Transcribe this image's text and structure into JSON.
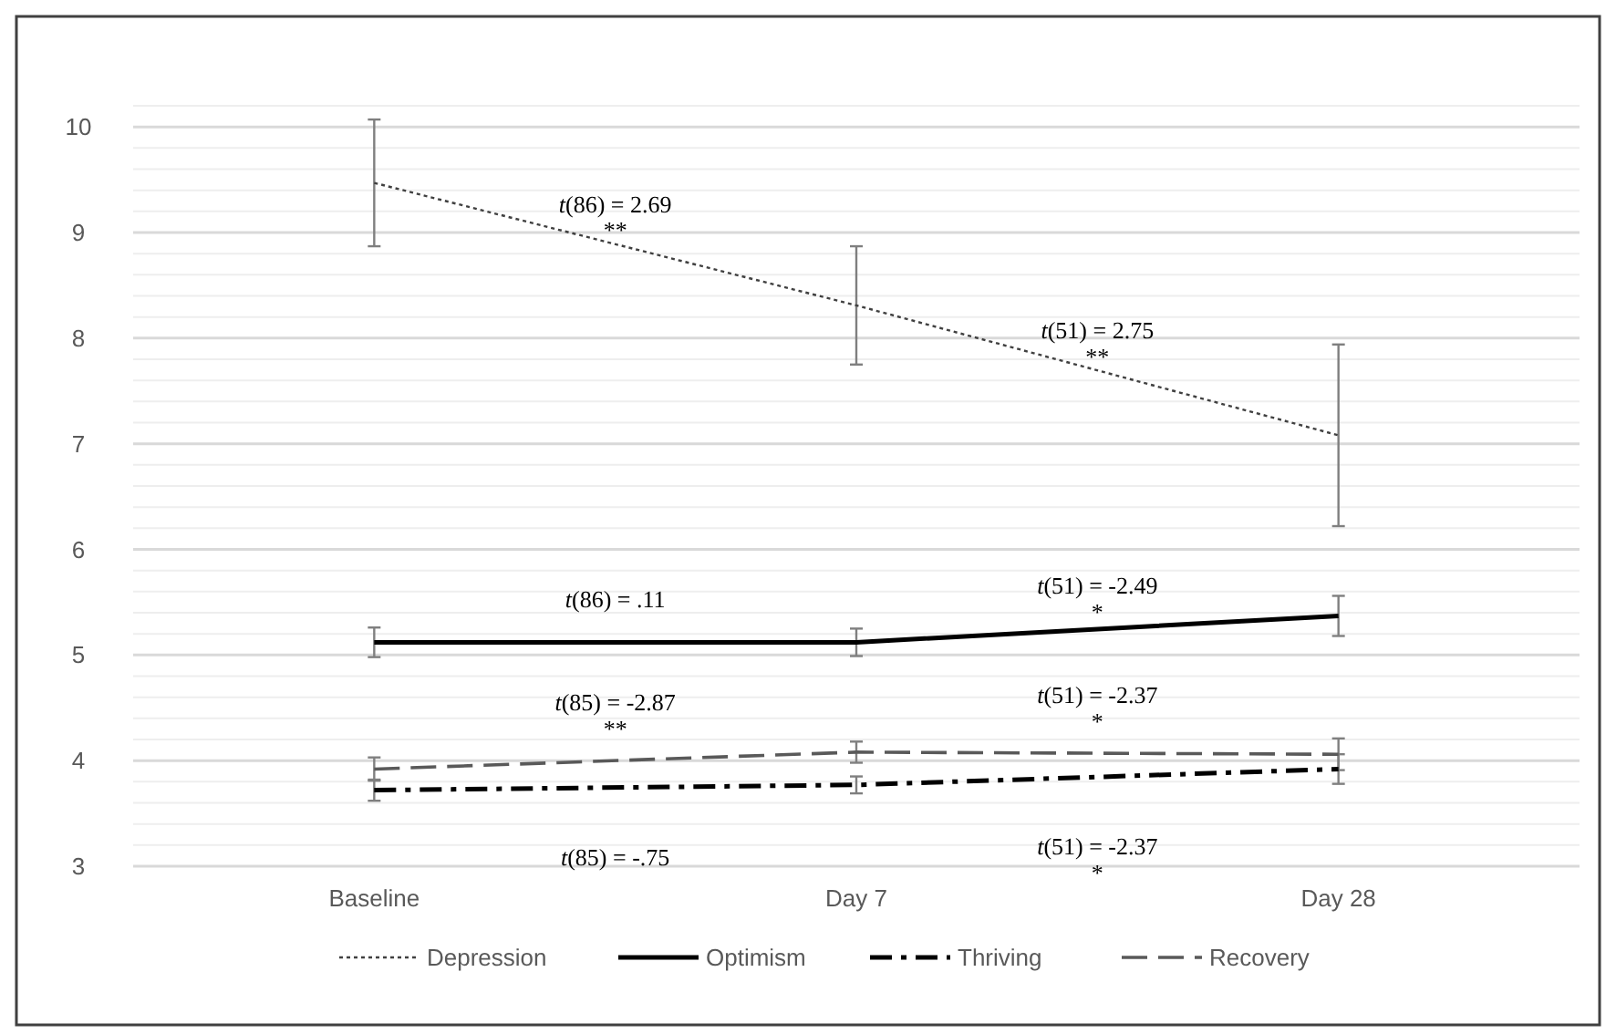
{
  "chart_data": {
    "type": "line",
    "categories": [
      "Baseline",
      "Day 7",
      "Day 28"
    ],
    "series": [
      {
        "name": "Depression",
        "color": "#404040",
        "line_style": "dotted",
        "values": [
          9.47,
          8.31,
          7.08
        ],
        "errors": [
          0.6,
          0.56,
          0.86
        ]
      },
      {
        "name": "Optimism",
        "color": "#000000",
        "line_style": "solid",
        "values": [
          5.12,
          5.12,
          5.37
        ],
        "errors": [
          0.14,
          0.13,
          0.19
        ]
      },
      {
        "name": "Thriving",
        "color": "#000000",
        "line_style": "dashdot",
        "values": [
          3.72,
          3.77,
          3.92
        ],
        "errors": [
          0.1,
          0.08,
          0.14
        ]
      },
      {
        "name": "Recovery",
        "color": "#595959",
        "line_style": "dashed",
        "values": [
          3.92,
          4.08,
          4.06
        ],
        "errors": [
          0.11,
          0.1,
          0.15
        ]
      }
    ],
    "ylim": [
      3,
      10.2
    ],
    "yticks": [
      3,
      {
        "value": 3.2,
        "label": null
      },
      {
        "value": 3.4,
        "label": null
      },
      {
        "value": 3.6,
        "label": null
      },
      {
        "value": 3.8,
        "label": null
      },
      4,
      {
        "value": 4.2,
        "label": null
      },
      {
        "value": 4.4,
        "label": null
      },
      {
        "value": 4.6,
        "label": null
      },
      {
        "value": 4.8,
        "label": null
      },
      5,
      {
        "value": 5.2,
        "label": null
      },
      {
        "value": 5.4,
        "label": null
      },
      {
        "value": 5.6,
        "label": null
      },
      {
        "value": 5.8,
        "label": null
      },
      6,
      {
        "value": 6.2,
        "label": null
      },
      {
        "value": 6.4,
        "label": null
      },
      {
        "value": 6.6,
        "label": null
      },
      {
        "value": 6.8,
        "label": null
      },
      7,
      {
        "value": 7.2,
        "label": null
      },
      {
        "value": 7.4,
        "label": null
      },
      {
        "value": 7.6,
        "label": null
      },
      {
        "value": 7.8,
        "label": null
      },
      8,
      {
        "value": 8.2,
        "label": null
      },
      {
        "value": 8.4,
        "label": null
      },
      {
        "value": 8.6,
        "label": null
      },
      {
        "value": 8.8,
        "label": null
      },
      9,
      {
        "value": 9.2,
        "label": null
      },
      {
        "value": 9.4,
        "label": null
      },
      {
        "value": 9.6,
        "label": null
      },
      {
        "value": 9.8,
        "label": null
      },
      10,
      {
        "value": 10.2,
        "label": null
      }
    ],
    "grid": "y",
    "legend": "bottom",
    "marker": "none",
    "annotations": [
      "t(86) = 2.69\n**",
      "t(51) = 2.75\n**",
      "t(86) = .11",
      "t(51) = -2.49\n*",
      "t(85) = -2.87\n**",
      "t(51) = -2.37\n*",
      "t(85) = -.75",
      "t(51) = -2.37\n*"
    ]
  }
}
